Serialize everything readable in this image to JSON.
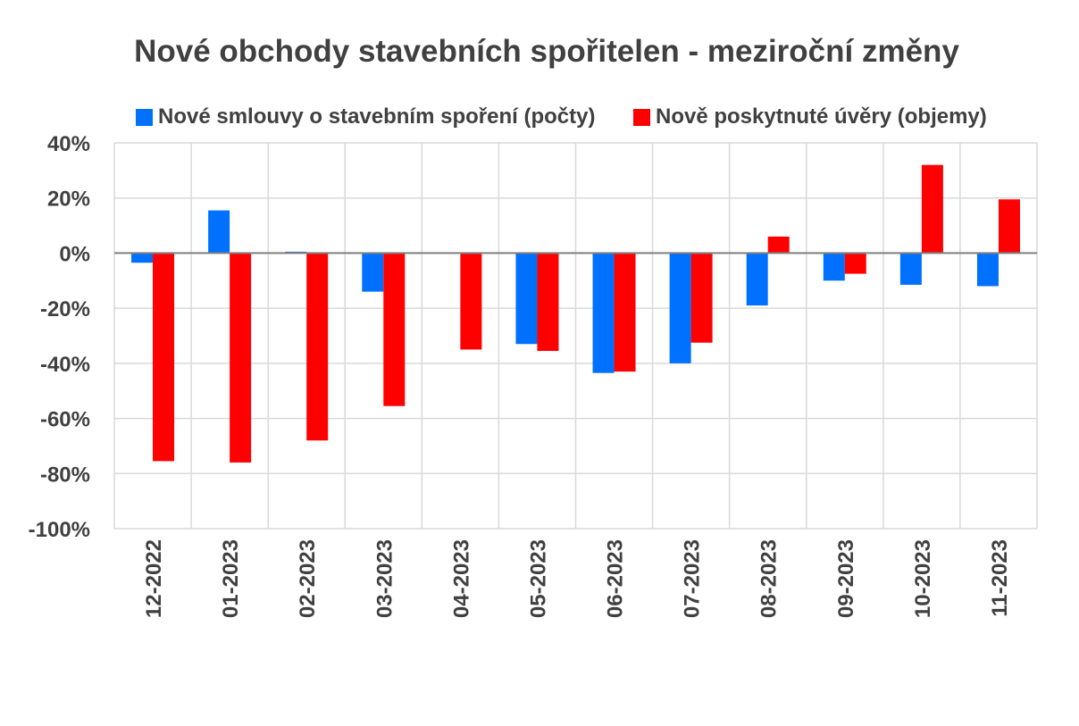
{
  "chart_data": {
    "type": "bar",
    "title": "Nové obchody stavebních spořitelen - meziroční změny",
    "categories": [
      "12-2022",
      "01-2023",
      "02-2023",
      "03-2023",
      "04-2023",
      "05-2023",
      "06-2023",
      "07-2023",
      "08-2023",
      "09-2023",
      "10-2023",
      "11-2023"
    ],
    "series": [
      {
        "name": "Nové smlouvy o stavebním spoření (počty)",
        "color": "#0070FF",
        "values": [
          -3.5,
          15.5,
          0.5,
          -14,
          0,
          -33,
          -43.5,
          -40,
          -19,
          -10,
          -11.5,
          -12
        ]
      },
      {
        "name": "Nově poskytnuté úvěry (objemy)",
        "color": "#FF0000",
        "values": [
          -75.5,
          -76,
          -68,
          -55.5,
          -35,
          -35.5,
          -43,
          -32.5,
          6,
          -7.5,
          32,
          19.5
        ]
      }
    ],
    "yticks": [
      "40%",
      "20%",
      "0%",
      "-20%",
      "-40%",
      "-60%",
      "-80%",
      "-100%"
    ],
    "ylim": [
      -100,
      40
    ],
    "grid": true,
    "legend_position": "top"
  }
}
